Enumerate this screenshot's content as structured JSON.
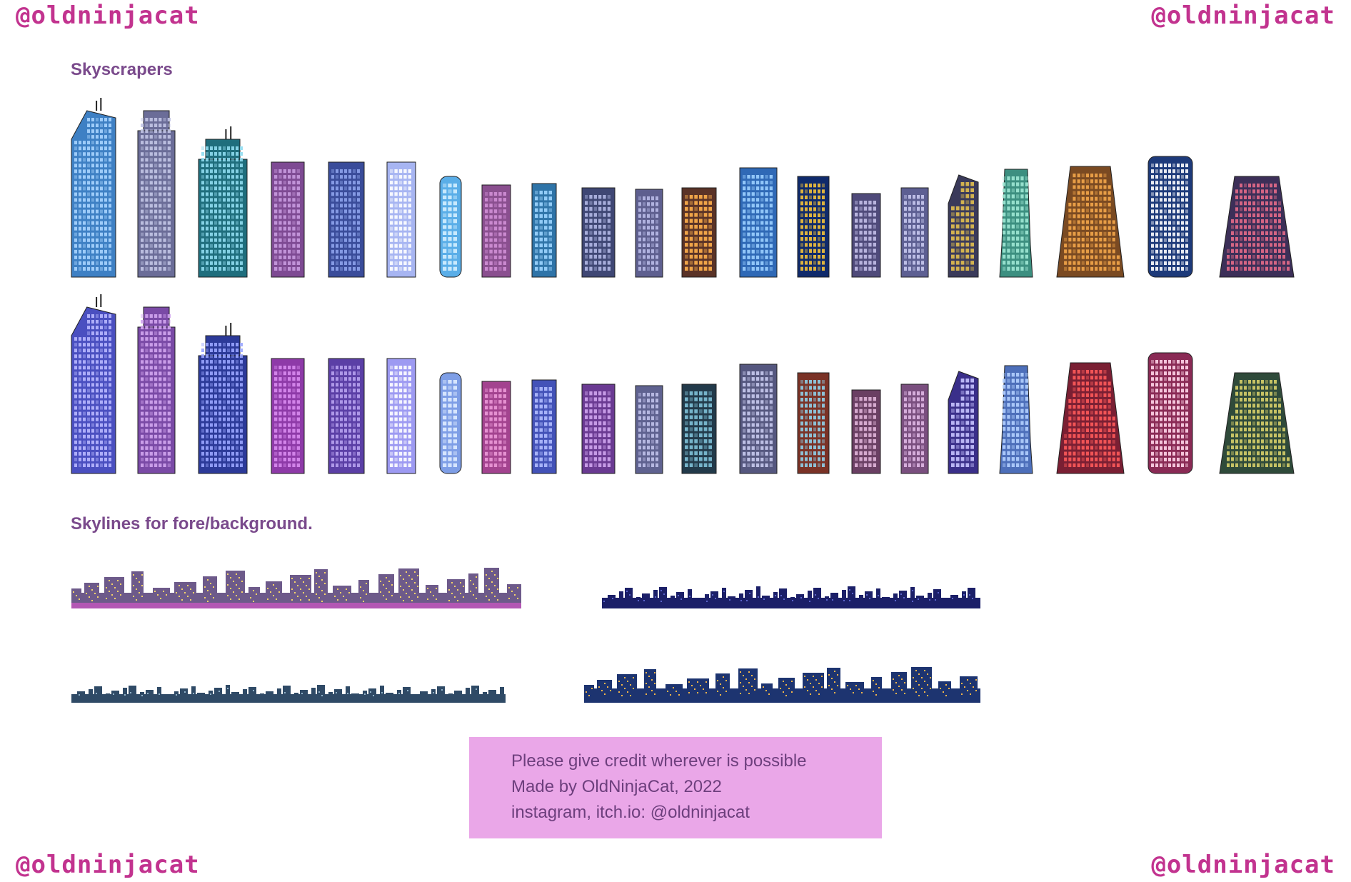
{
  "watermark": "@oldninjacat",
  "headings": {
    "skyscrapers": "Skyscrapers",
    "skylines": "Skylines for fore/background."
  },
  "credit": {
    "line1": "Please give credit wherever is possible",
    "line2": "Made by OldNinjaCat, 2022",
    "line3": "instagram, itch.io: @oldninjacat"
  },
  "colors": {
    "watermark": "#c2338f",
    "heading": "#7a4a8c",
    "credit_bg": "#eaa7e8",
    "credit_text": "#6d3f7d"
  },
  "skyscrapers": {
    "rows": [
      {
        "name": "row-1",
        "buildings": [
          {
            "body": "#3e80c4",
            "win": "#a8d4ff",
            "shape": "angled"
          },
          {
            "body": "#6b6d98",
            "win": "#c3c5e6",
            "shape": "stepped"
          },
          {
            "body": "#1f6e7d",
            "win": "#8fdcef",
            "shape": "stepped"
          },
          {
            "body": "#7e4a93",
            "win": "#c99be0",
            "shape": "rect"
          },
          {
            "body": "#3a4c9a",
            "win": "#8ea3ec",
            "shape": "rect"
          },
          {
            "body": "#a7b5f2",
            "win": "#ffffff",
            "shape": "rect"
          },
          {
            "body": "#5aaee8",
            "win": "#d4efff",
            "shape": "round"
          },
          {
            "body": "#8a4f8f",
            "win": "#d08fd6",
            "shape": "rect"
          },
          {
            "body": "#2f74a8",
            "win": "#9fd6ff",
            "shape": "rect"
          },
          {
            "body": "#3f4774",
            "win": "#b2b8e6",
            "shape": "rect"
          },
          {
            "body": "#5e5f8f",
            "win": "#b9bbe8",
            "shape": "rect"
          },
          {
            "body": "#5a3327",
            "win": "#ffb04c",
            "shape": "rect"
          },
          {
            "body": "#2f69b6",
            "win": "#9cd0ff",
            "shape": "rect"
          },
          {
            "body": "#0f2a6b",
            "win": "#f5c23a",
            "shape": "rect"
          },
          {
            "body": "#4f4a7a",
            "win": "#c3bfe8",
            "shape": "rect"
          },
          {
            "body": "#5d5f92",
            "win": "#c8c9f0",
            "shape": "rect"
          },
          {
            "body": "#3a3a5a",
            "win": "#e3c04e",
            "shape": "angled"
          },
          {
            "body": "#3c8f80",
            "win": "#9fe8d4",
            "shape": "taper"
          },
          {
            "body": "#7a4a22",
            "win": "#f3a64a",
            "shape": "trapezoid"
          },
          {
            "body": "#1d3a7a",
            "win": "#ffffff",
            "shape": "round"
          },
          {
            "body": "#3c2f58",
            "win": "#e56c8a",
            "shape": "trapezoid"
          }
        ]
      },
      {
        "name": "row-2",
        "buildings": [
          {
            "body": "#4a4fc0",
            "win": "#b9b8ff",
            "shape": "angled"
          },
          {
            "body": "#7a4aa6",
            "win": "#d2a6f0",
            "shape": "stepped"
          },
          {
            "body": "#2c3a99",
            "win": "#9aa6ff",
            "shape": "stepped"
          },
          {
            "body": "#8e3aa8",
            "win": "#d98cf0",
            "shape": "rect"
          },
          {
            "body": "#5b3fa6",
            "win": "#b7a2f0",
            "shape": "rect"
          },
          {
            "body": "#9d9af2",
            "win": "#ffffff",
            "shape": "rect"
          },
          {
            "body": "#7e9ee6",
            "win": "#e0ecff",
            "shape": "round"
          },
          {
            "body": "#a3438f",
            "win": "#ec9ad8",
            "shape": "rect"
          },
          {
            "body": "#4352b8",
            "win": "#b3beff",
            "shape": "rect"
          },
          {
            "body": "#6a3a92",
            "win": "#d0a6ef",
            "shape": "rect"
          },
          {
            "body": "#5f6290",
            "win": "#c0c2ea",
            "shape": "rect"
          },
          {
            "body": "#223a4a",
            "win": "#7fc2d8",
            "shape": "rect"
          },
          {
            "body": "#55577f",
            "win": "#c9cbef",
            "shape": "rect"
          },
          {
            "body": "#7a3226",
            "win": "#8fd0ea",
            "shape": "rect"
          },
          {
            "body": "#6a3f63",
            "win": "#e2b6da",
            "shape": "rect"
          },
          {
            "body": "#7a4f7f",
            "win": "#e0b8e6",
            "shape": "rect"
          },
          {
            "body": "#3a2f8a",
            "win": "#c8c4ff",
            "shape": "angled"
          },
          {
            "body": "#4d6fba",
            "win": "#b4d0ff",
            "shape": "taper"
          },
          {
            "body": "#7a1f33",
            "win": "#ff5a5a",
            "shape": "trapezoid"
          },
          {
            "body": "#8a2a55",
            "win": "#ffd6ea",
            "shape": "round"
          },
          {
            "body": "#2f4a3a",
            "win": "#d8d06a",
            "shape": "trapezoid"
          }
        ]
      }
    ]
  },
  "skylines": [
    {
      "name": "skyline-purple-large",
      "body": "#6d5a8a",
      "win": "#f4d26a",
      "bottom": "#b357b4"
    },
    {
      "name": "skyline-navy-thin",
      "body": "#1b1f68",
      "win": "#5a63c9",
      "bottom": "#1b1f68"
    },
    {
      "name": "skyline-slate-thin",
      "body": "#2f4a66",
      "win": "#8fb0c8",
      "bottom": "#2f4a66"
    },
    {
      "name": "skyline-blue-large",
      "body": "#1d3470",
      "win": "#f2b44a",
      "bottom": "#1d3470"
    }
  ]
}
